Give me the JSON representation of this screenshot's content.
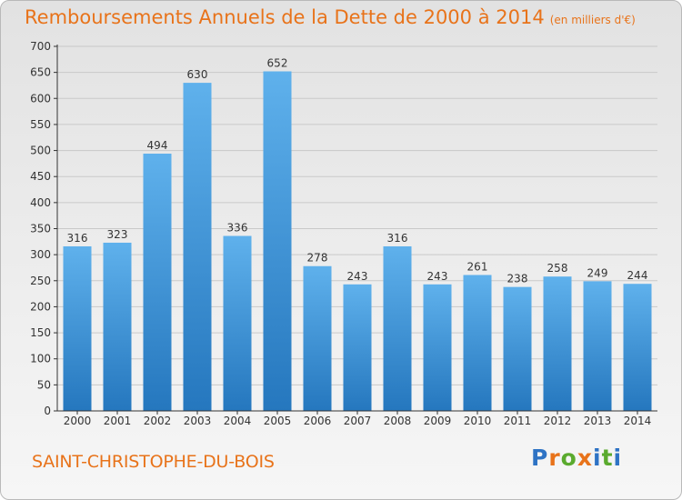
{
  "header": {
    "title": "Remboursements Annuels de la Dette de 2000 à 2014",
    "subtitle": "(en milliers d'€)"
  },
  "footer": {
    "commune": "SAINT-CHRISTOPHE-DU-BOIS",
    "logo_letters": [
      "P",
      "r",
      "o",
      "x",
      "i",
      "t",
      "i"
    ]
  },
  "colors": {
    "accent": "#e8731a",
    "bar_light": "#5fb1ec",
    "bar_dark": "#2577be",
    "axis": "#333333"
  },
  "chart_data": {
    "type": "bar",
    "title": "Remboursements Annuels de la Dette de 2000 à 2014",
    "subtitle": "(en milliers d'€)",
    "categories": [
      "2000",
      "2001",
      "2002",
      "2003",
      "2004",
      "2005",
      "2006",
      "2007",
      "2008",
      "2009",
      "2010",
      "2011",
      "2012",
      "2013",
      "2014"
    ],
    "values": [
      316,
      323,
      494,
      630,
      336,
      652,
      278,
      243,
      316,
      243,
      261,
      238,
      258,
      249,
      244
    ],
    "ylim": [
      0,
      700
    ],
    "yticks": [
      0,
      50,
      100,
      150,
      200,
      250,
      300,
      350,
      400,
      450,
      500,
      550,
      600,
      650,
      700
    ],
    "grid": true,
    "data_labels": true
  }
}
